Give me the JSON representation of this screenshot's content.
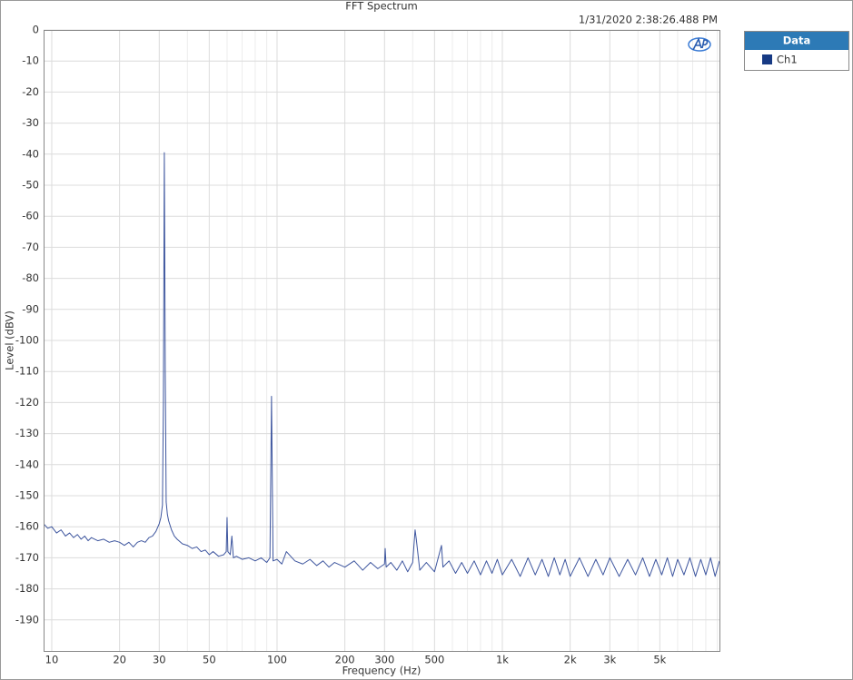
{
  "chart_data": {
    "type": "line",
    "title": "FFT Spectrum",
    "subtitle": "1/31/2020 2:38:26.488 PM",
    "xlabel": "Frequency (Hz)",
    "ylabel": "Level (dBV)",
    "xscale": "log",
    "grid": true,
    "legend_title": "Data",
    "legend_position": "outside-right",
    "xlim": [
      9.2,
      9200
    ],
    "ylim": [
      -200,
      0
    ],
    "xticks": [
      10,
      20,
      30,
      50,
      100,
      200,
      300,
      500,
      {
        "value": 1000,
        "label": "1k"
      },
      {
        "value": 2000,
        "label": "2k"
      },
      {
        "value": 3000,
        "label": "3k"
      },
      {
        "value": 5000,
        "label": "5k"
      }
    ],
    "minor_xticks": [
      40,
      60,
      70,
      80,
      90,
      400,
      600,
      700,
      800,
      900,
      4000,
      6000,
      7000,
      8000,
      9000
    ],
    "yticks": [
      0,
      -10,
      -20,
      -30,
      -40,
      -50,
      -60,
      -70,
      -80,
      -90,
      -100,
      -110,
      -120,
      -130,
      -140,
      -150,
      -160,
      -170,
      -180,
      -190
    ],
    "x": [
      9.2,
      9.6,
      10,
      10.5,
      11,
      11.5,
      12,
      12.5,
      13,
      13.5,
      14,
      14.5,
      15,
      16,
      17,
      18,
      19,
      20,
      21,
      22,
      23,
      24,
      25,
      26,
      27,
      28,
      29,
      30,
      30.5,
      31,
      31.3,
      31.6,
      31.9,
      32.2,
      32.6,
      33,
      34,
      35,
      36,
      38,
      40,
      42,
      44,
      46,
      48,
      50,
      52,
      55,
      58,
      59.5,
      60,
      60.5,
      62,
      63,
      64,
      66,
      70,
      75,
      80,
      85,
      90,
      93,
      94.5,
      96,
      100,
      105,
      110,
      120,
      130,
      140,
      150,
      160,
      170,
      180,
      200,
      220,
      240,
      260,
      280,
      300,
      302,
      305,
      320,
      340,
      360,
      380,
      400,
      410,
      415,
      430,
      460,
      500,
      537,
      545,
      580,
      620,
      660,
      700,
      750,
      800,
      850,
      900,
      950,
      1000,
      1100,
      1200,
      1300,
      1400,
      1500,
      1600,
      1700,
      1800,
      1900,
      2000,
      2200,
      2400,
      2600,
      2800,
      3000,
      3300,
      3600,
      3900,
      4200,
      4500,
      4800,
      5100,
      5400,
      5700,
      6000,
      6400,
      6800,
      7200,
      7600,
      8000,
      8400,
      8800,
      9200
    ],
    "series": [
      {
        "name": "Ch1",
        "color": "#3d559e",
        "legend_color": "#173a84",
        "values": [
          -159,
          -160.5,
          -160,
          -162,
          -161,
          -163,
          -162,
          -163.5,
          -162.5,
          -164,
          -163,
          -164.5,
          -163.5,
          -164.5,
          -164,
          -165,
          -164.5,
          -165,
          -166,
          -165,
          -166.5,
          -165,
          -164.5,
          -165,
          -163.5,
          -163,
          -161.5,
          -159,
          -157,
          -153,
          -120,
          -39.5,
          -110,
          -152,
          -156,
          -158,
          -161,
          -163,
          -164,
          -165.5,
          -166,
          -167,
          -166.5,
          -168,
          -167.5,
          -169,
          -168,
          -169.5,
          -169,
          -168,
          -157,
          -168,
          -169,
          -163,
          -170,
          -169.5,
          -170.5,
          -170,
          -171,
          -170,
          -171.5,
          -170,
          -118,
          -171,
          -170.5,
          -172,
          -168,
          -171,
          -172,
          -170.5,
          -172.5,
          -171,
          -173,
          -171.5,
          -173,
          -171,
          -174,
          -171.5,
          -173.5,
          -172,
          -167,
          -173,
          -171.5,
          -174,
          -171,
          -174.5,
          -171.5,
          -161,
          -164,
          -174,
          -171.5,
          -174.5,
          -166,
          -173,
          -171,
          -175,
          -171.5,
          -175,
          -171,
          -175.5,
          -171,
          -175,
          -170.5,
          -175.5,
          -170.5,
          -176,
          -170,
          -175.5,
          -170.5,
          -176,
          -170,
          -175.5,
          -170.5,
          -176,
          -170,
          -176,
          -170.5,
          -175.5,
          -170,
          -176,
          -170.5,
          -175.5,
          -170,
          -176,
          -170.5,
          -175.5,
          -170,
          -176,
          -170.5,
          -175.5,
          -170,
          -176,
          -170.5,
          -175.5,
          -170,
          -176,
          -171
        ]
      }
    ]
  }
}
